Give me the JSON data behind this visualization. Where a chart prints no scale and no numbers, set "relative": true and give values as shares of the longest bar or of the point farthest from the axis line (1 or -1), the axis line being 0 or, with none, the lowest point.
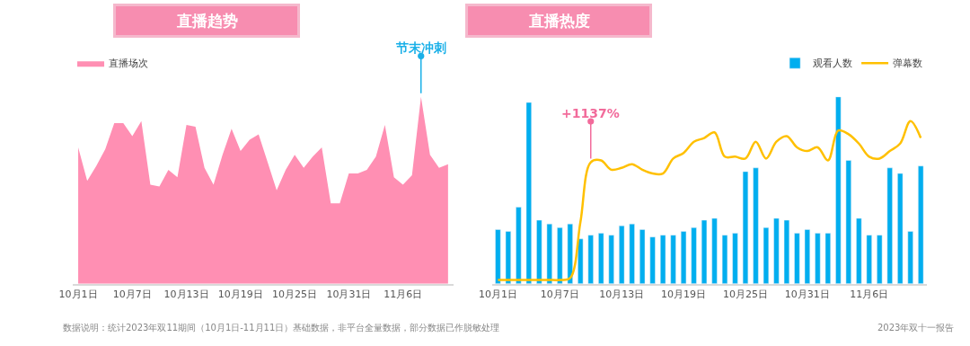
{
  "chart_data": [
    {
      "type": "area",
      "title": "直播趋势",
      "relative": true,
      "legend": "top left",
      "marker": "none",
      "categories": [
        "10月1日",
        null,
        null,
        null,
        null,
        null,
        "10月7日",
        null,
        null,
        null,
        null,
        null,
        "10月13日",
        null,
        null,
        null,
        null,
        null,
        "10月19日",
        null,
        null,
        null,
        null,
        null,
        "10月25日",
        null,
        null,
        null,
        null,
        null,
        "10月31日",
        null,
        null,
        null,
        null,
        null,
        "11月6日",
        null,
        null,
        null,
        null,
        null
      ],
      "series": [
        {
          "name": "直播场次",
          "color": "#ff8fb3",
          "values": [
            0.73,
            0.55,
            0.63,
            0.72,
            0.86,
            0.86,
            0.79,
            0.87,
            0.53,
            0.52,
            0.61,
            0.57,
            0.85,
            0.84,
            0.62,
            0.53,
            0.69,
            0.83,
            0.71,
            0.77,
            0.8,
            0.65,
            0.5,
            0.61,
            0.69,
            0.62,
            0.68,
            0.73,
            0.43,
            0.43,
            0.59,
            0.59,
            0.61,
            0.68,
            0.85,
            0.57,
            0.53,
            0.58,
            1.0,
            0.69,
            0.62,
            0.64
          ]
        }
      ],
      "annotations": [
        "节末冲刺",
        "数据说明：统计2023年双11期间（10月1日-11月11日）基础数据，非平台全量数据，部分数据已作脱敏处理"
      ]
    },
    {
      "type": "bar",
      "title": "直播热度",
      "relative": true,
      "legend": "top right",
      "categories": [
        "10月1日",
        null,
        null,
        null,
        null,
        null,
        "10月7日",
        null,
        null,
        null,
        null,
        null,
        "10月13日",
        null,
        null,
        null,
        null,
        null,
        "10月19日",
        null,
        null,
        null,
        null,
        null,
        "10月25日",
        null,
        null,
        null,
        null,
        null,
        "10月31日",
        null,
        null,
        null,
        null,
        null,
        "11月6日",
        null,
        null,
        null,
        null,
        null
      ],
      "series": [
        {
          "name": "观看人数",
          "type": "bar",
          "color": "#00aeef",
          "values": [
            0.29,
            0.28,
            0.41,
            0.97,
            0.34,
            0.32,
            0.3,
            0.32,
            0.24,
            0.26,
            0.27,
            0.26,
            0.31,
            0.32,
            0.29,
            0.25,
            0.26,
            0.26,
            0.28,
            0.3,
            0.34,
            0.35,
            0.26,
            0.27,
            0.6,
            0.62,
            0.3,
            0.35,
            0.34,
            0.27,
            0.29,
            0.27,
            0.27,
            1.0,
            0.66,
            0.35,
            0.26,
            0.26,
            0.62,
            0.59,
            0.28,
            0.63
          ]
        },
        {
          "name": "弹幕数",
          "type": "line",
          "color": "#ffc000",
          "line_style": "solid",
          "marker": "none",
          "values": [
            0.02,
            0.02,
            0.02,
            0.02,
            0.02,
            0.02,
            0.02,
            0.03,
            0.33,
            0.65,
            0.66,
            0.61,
            0.62,
            0.64,
            0.61,
            0.59,
            0.59,
            0.67,
            0.7,
            0.76,
            0.78,
            0.81,
            0.68,
            0.68,
            0.67,
            0.76,
            0.67,
            0.76,
            0.79,
            0.73,
            0.71,
            0.73,
            0.66,
            0.82,
            0.8,
            0.75,
            0.68,
            0.67,
            0.71,
            0.75,
            0.87,
            0.78
          ]
        }
      ],
      "annotations": [
        "+1137%",
        "2023年双十一报告"
      ]
    }
  ]
}
